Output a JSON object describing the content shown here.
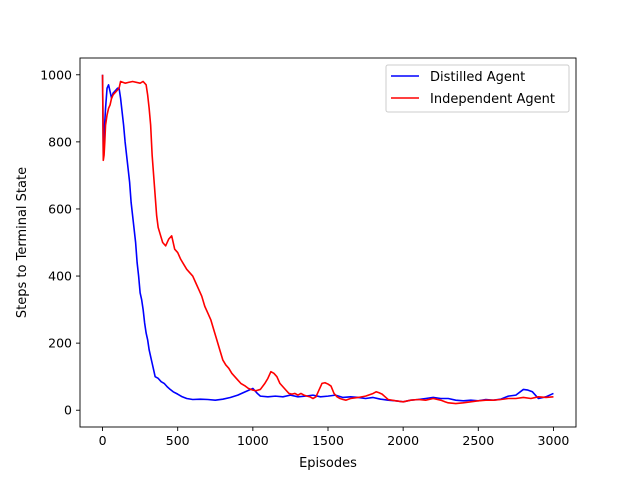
{
  "chart_data": {
    "type": "line",
    "title": "",
    "xlabel": "Episodes",
    "ylabel": "Steps to Terminal State",
    "xlim": [
      -150,
      3150
    ],
    "ylim": [
      -50,
      1050
    ],
    "xticks": [
      0,
      500,
      1000,
      1500,
      2000,
      2500,
      3000
    ],
    "yticks": [
      0,
      200,
      400,
      600,
      800,
      1000
    ],
    "grid": false,
    "legend_position": "top-right",
    "series": [
      {
        "name": "Distilled Agent",
        "color": "#0000ff",
        "points": [
          [
            0,
            1000
          ],
          [
            5,
            760
          ],
          [
            10,
            820
          ],
          [
            20,
            900
          ],
          [
            30,
            960
          ],
          [
            40,
            970
          ],
          [
            50,
            950
          ],
          [
            60,
            930
          ],
          [
            70,
            945
          ],
          [
            80,
            950
          ],
          [
            90,
            955
          ],
          [
            100,
            960
          ],
          [
            110,
            960
          ],
          [
            120,
            930
          ],
          [
            130,
            890
          ],
          [
            140,
            850
          ],
          [
            150,
            800
          ],
          [
            160,
            760
          ],
          [
            170,
            720
          ],
          [
            180,
            680
          ],
          [
            190,
            620
          ],
          [
            200,
            580
          ],
          [
            210,
            540
          ],
          [
            220,
            500
          ],
          [
            230,
            440
          ],
          [
            240,
            400
          ],
          [
            250,
            350
          ],
          [
            260,
            330
          ],
          [
            270,
            300
          ],
          [
            280,
            260
          ],
          [
            290,
            230
          ],
          [
            300,
            210
          ],
          [
            310,
            180
          ],
          [
            320,
            160
          ],
          [
            330,
            140
          ],
          [
            340,
            120
          ],
          [
            350,
            100
          ],
          [
            370,
            95
          ],
          [
            390,
            85
          ],
          [
            410,
            80
          ],
          [
            430,
            70
          ],
          [
            450,
            62
          ],
          [
            470,
            55
          ],
          [
            500,
            48
          ],
          [
            530,
            40
          ],
          [
            560,
            35
          ],
          [
            600,
            32
          ],
          [
            650,
            33
          ],
          [
            700,
            32
          ],
          [
            750,
            30
          ],
          [
            800,
            33
          ],
          [
            850,
            38
          ],
          [
            900,
            45
          ],
          [
            950,
            55
          ],
          [
            1000,
            65
          ],
          [
            1030,
            50
          ],
          [
            1050,
            42
          ],
          [
            1100,
            40
          ],
          [
            1150,
            42
          ],
          [
            1200,
            40
          ],
          [
            1250,
            45
          ],
          [
            1300,
            40
          ],
          [
            1350,
            42
          ],
          [
            1400,
            45
          ],
          [
            1450,
            40
          ],
          [
            1500,
            42
          ],
          [
            1550,
            45
          ],
          [
            1600,
            38
          ],
          [
            1650,
            40
          ],
          [
            1700,
            38
          ],
          [
            1750,
            35
          ],
          [
            1800,
            38
          ],
          [
            1850,
            33
          ],
          [
            1900,
            30
          ],
          [
            1950,
            28
          ],
          [
            2000,
            25
          ],
          [
            2050,
            30
          ],
          [
            2100,
            32
          ],
          [
            2150,
            35
          ],
          [
            2200,
            38
          ],
          [
            2250,
            35
          ],
          [
            2300,
            35
          ],
          [
            2350,
            30
          ],
          [
            2400,
            28
          ],
          [
            2450,
            30
          ],
          [
            2500,
            28
          ],
          [
            2550,
            32
          ],
          [
            2600,
            30
          ],
          [
            2650,
            33
          ],
          [
            2700,
            42
          ],
          [
            2750,
            45
          ],
          [
            2800,
            62
          ],
          [
            2830,
            60
          ],
          [
            2860,
            55
          ],
          [
            2900,
            35
          ],
          [
            2950,
            40
          ],
          [
            3000,
            50
          ]
        ]
      },
      {
        "name": "Independent Agent",
        "color": "#ff0000",
        "points": [
          [
            0,
            1000
          ],
          [
            5,
            745
          ],
          [
            10,
            760
          ],
          [
            15,
            800
          ],
          [
            20,
            850
          ],
          [
            30,
            880
          ],
          [
            40,
            900
          ],
          [
            50,
            910
          ],
          [
            60,
            930
          ],
          [
            70,
            940
          ],
          [
            80,
            945
          ],
          [
            90,
            950
          ],
          [
            100,
            955
          ],
          [
            110,
            960
          ],
          [
            120,
            980
          ],
          [
            150,
            975
          ],
          [
            200,
            980
          ],
          [
            250,
            975
          ],
          [
            270,
            980
          ],
          [
            290,
            970
          ],
          [
            300,
            940
          ],
          [
            310,
            900
          ],
          [
            320,
            850
          ],
          [
            330,
            760
          ],
          [
            340,
            700
          ],
          [
            350,
            640
          ],
          [
            360,
            580
          ],
          [
            370,
            545
          ],
          [
            380,
            530
          ],
          [
            400,
            500
          ],
          [
            420,
            490
          ],
          [
            440,
            510
          ],
          [
            460,
            520
          ],
          [
            480,
            480
          ],
          [
            500,
            470
          ],
          [
            520,
            450
          ],
          [
            540,
            435
          ],
          [
            560,
            420
          ],
          [
            580,
            410
          ],
          [
            600,
            400
          ],
          [
            620,
            380
          ],
          [
            640,
            360
          ],
          [
            660,
            340
          ],
          [
            680,
            310
          ],
          [
            700,
            290
          ],
          [
            720,
            270
          ],
          [
            740,
            240
          ],
          [
            760,
            210
          ],
          [
            780,
            180
          ],
          [
            800,
            150
          ],
          [
            820,
            135
          ],
          [
            840,
            125
          ],
          [
            860,
            110
          ],
          [
            880,
            100
          ],
          [
            900,
            90
          ],
          [
            920,
            80
          ],
          [
            950,
            72
          ],
          [
            970,
            65
          ],
          [
            1000,
            60
          ],
          [
            1020,
            58
          ],
          [
            1050,
            62
          ],
          [
            1080,
            80
          ],
          [
            1100,
            95
          ],
          [
            1120,
            115
          ],
          [
            1140,
            110
          ],
          [
            1160,
            100
          ],
          [
            1180,
            80
          ],
          [
            1200,
            70
          ],
          [
            1220,
            60
          ],
          [
            1240,
            50
          ],
          [
            1260,
            48
          ],
          [
            1280,
            50
          ],
          [
            1300,
            45
          ],
          [
            1320,
            50
          ],
          [
            1340,
            45
          ],
          [
            1360,
            42
          ],
          [
            1380,
            40
          ],
          [
            1400,
            35
          ],
          [
            1420,
            40
          ],
          [
            1440,
            60
          ],
          [
            1460,
            80
          ],
          [
            1480,
            82
          ],
          [
            1500,
            78
          ],
          [
            1520,
            72
          ],
          [
            1540,
            50
          ],
          [
            1560,
            40
          ],
          [
            1580,
            35
          ],
          [
            1600,
            32
          ],
          [
            1620,
            30
          ],
          [
            1650,
            35
          ],
          [
            1700,
            38
          ],
          [
            1750,
            42
          ],
          [
            1800,
            50
          ],
          [
            1820,
            55
          ],
          [
            1840,
            52
          ],
          [
            1860,
            48
          ],
          [
            1880,
            40
          ],
          [
            1900,
            32
          ],
          [
            1950,
            28
          ],
          [
            2000,
            25
          ],
          [
            2050,
            30
          ],
          [
            2100,
            32
          ],
          [
            2150,
            30
          ],
          [
            2200,
            35
          ],
          [
            2250,
            30
          ],
          [
            2280,
            25
          ],
          [
            2300,
            22
          ],
          [
            2350,
            20
          ],
          [
            2400,
            22
          ],
          [
            2450,
            25
          ],
          [
            2500,
            28
          ],
          [
            2550,
            30
          ],
          [
            2600,
            30
          ],
          [
            2650,
            32
          ],
          [
            2700,
            35
          ],
          [
            2750,
            35
          ],
          [
            2800,
            38
          ],
          [
            2850,
            35
          ],
          [
            2900,
            40
          ],
          [
            2950,
            38
          ],
          [
            3000,
            40
          ]
        ]
      }
    ]
  }
}
